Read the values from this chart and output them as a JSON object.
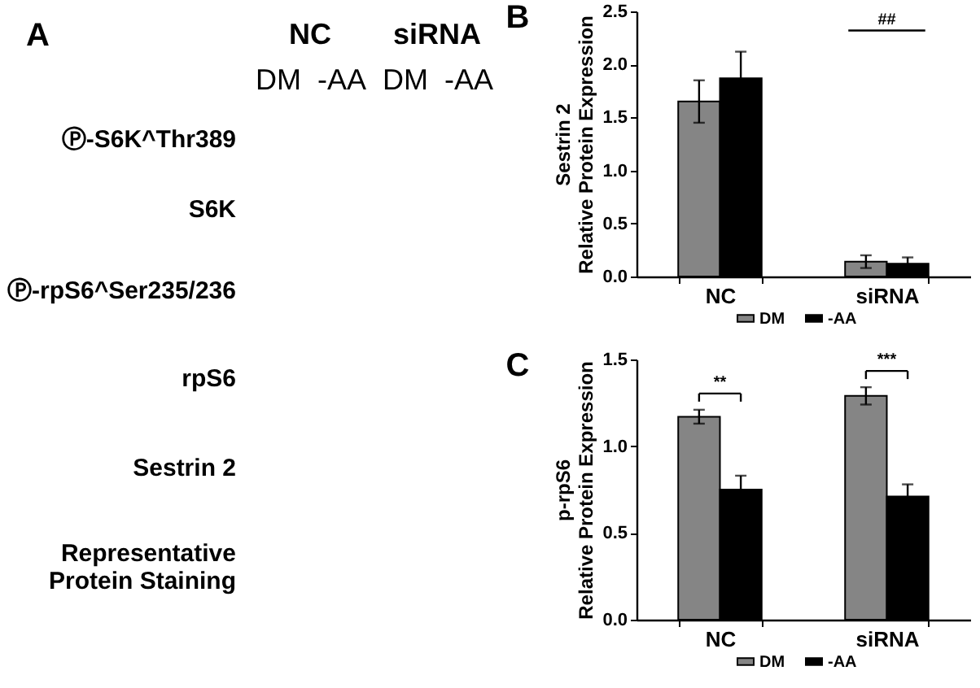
{
  "chart_data": [
    {
      "type": "other",
      "title": "A",
      "annotations": [
        "NC",
        "siRNA"
      ],
      "categories": [
        "DM",
        "-AA",
        "DM",
        "-AA"
      ],
      "y_categories": [
        "Ⓟ-S6K^Thr389",
        "S6K",
        "Ⓟ-rpS6^Ser235/236",
        "rpS6",
        "Sestrin 2",
        "Representative\nProtein Staining"
      ]
    },
    {
      "type": "bar",
      "title": "B",
      "categories": [
        "NC",
        "siRNA"
      ],
      "ylabel": "Sestrin 2\nRelative Protein Expression",
      "ylim": [
        0,
        2.5
      ],
      "yticks": [
        {
          "value": 0,
          "label": "0.0"
        },
        {
          "value": 0.5,
          "label": "0.5"
        },
        {
          "value": 1,
          "label": "1.0"
        },
        {
          "value": 1.5,
          "label": "1.5"
        },
        {
          "value": 2,
          "label": "2.0"
        },
        {
          "value": 2.5,
          "label": "2.5"
        }
      ],
      "series": [
        {
          "name": "DM",
          "color": "#858585",
          "values": [
            1.65,
            0.14
          ],
          "errors": [
            0.2,
            0.06
          ]
        },
        {
          "name": "-AA",
          "color": "#000000",
          "values": [
            1.87,
            0.12
          ],
          "errors": [
            0.25,
            0.06
          ]
        }
      ],
      "legend": "bottom",
      "annotations": [
        "##"
      ]
    },
    {
      "type": "bar",
      "title": "C",
      "categories": [
        "NC",
        "siRNA"
      ],
      "ylabel": "p-rpS6\nRelative Protein Expression",
      "ylim": [
        0,
        1.5
      ],
      "yticks": [
        {
          "value": 0,
          "label": "0.0"
        },
        {
          "value": 0.5,
          "label": "0.5"
        },
        {
          "value": 1,
          "label": "1.0"
        },
        {
          "value": 1.5,
          "label": "1.5"
        }
      ],
      "series": [
        {
          "name": "DM",
          "color": "#858585",
          "values": [
            1.17,
            1.29
          ],
          "errors": [
            0.04,
            0.05
          ]
        },
        {
          "name": "-AA",
          "color": "#000000",
          "values": [
            0.75,
            0.71
          ],
          "errors": [
            0.08,
            0.07
          ]
        }
      ],
      "legend": "bottom",
      "annotations": [
        "**",
        "***"
      ]
    }
  ]
}
